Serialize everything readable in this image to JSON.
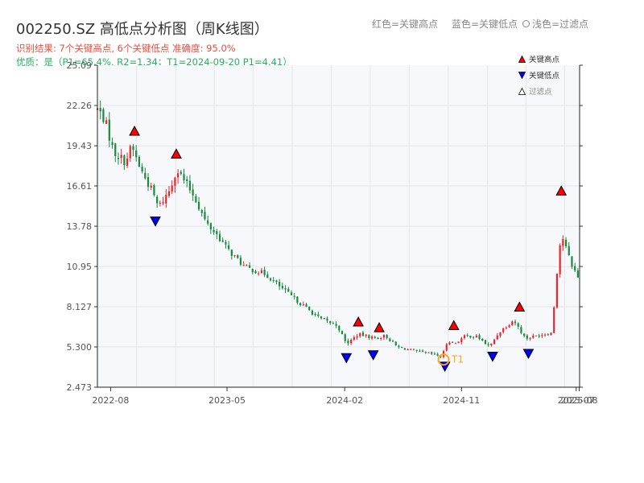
{
  "header": {
    "title": "002250.SZ 高低点分析图（周K线图）",
    "result_line": "识别结果: 7个关键高点, 6个关键低点   准确度: 95.0%",
    "quality_line": "优质：是（P1=65.4%, R2=1.34；T1=2024-09-20 P1=4.41）",
    "legend_red": "红色=关键高点",
    "legend_blue": "蓝色=关键低点",
    "legend_filtered": "浅色=过滤点"
  },
  "legend": {
    "high_label": "关键高点",
    "low_label": "关键低点",
    "filtered_label": "过滤点"
  },
  "colors": {
    "up": "#e8262b",
    "down": "#1a8a3c",
    "high_marker": "#ff0000",
    "low_marker": "#0000ff",
    "t1_ring": "#f5a623",
    "plot_bg": "#f6f8fb",
    "grid": "#e3e6ea"
  },
  "chart_data": {
    "type": "candlestick",
    "title": "002250.SZ 高低点分析图（周K线图）",
    "xlabel": "",
    "ylabel": "",
    "x_range": [
      "2022-07-01",
      "2025-08-05"
    ],
    "ylim": [
      2.473,
      25.09
    ],
    "y_ticks": [
      "2.473",
      "5.300",
      "8.127",
      "10.95",
      "13.78",
      "16.61",
      "19.43",
      "22.26",
      "25.09"
    ],
    "x_ticks": [
      {
        "date": "2022-08-01",
        "label": "2022-08"
      },
      {
        "date": "2023-05-01",
        "label": "2023-05"
      },
      {
        "date": "2024-02-01",
        "label": "2024-02"
      },
      {
        "date": "2024-11-01",
        "label": "2024-11"
      },
      {
        "date": "2025-07-28",
        "label": "2025-07"
      },
      {
        "date": "2025-08-04",
        "label": "2025-08"
      }
    ],
    "grid": true,
    "close_anchors": [
      [
        "2022-07-01",
        22.0
      ],
      [
        "2022-07-18",
        21.3
      ],
      [
        "2022-08-08",
        19.0
      ],
      [
        "2022-09-05",
        18.3
      ],
      [
        "2022-09-19",
        19.4
      ],
      [
        "2022-10-10",
        17.8
      ],
      [
        "2022-11-07",
        16.2
      ],
      [
        "2022-11-21",
        15.1
      ],
      [
        "2022-12-19",
        16.4
      ],
      [
        "2023-01-02",
        17.8
      ],
      [
        "2023-01-16",
        17.2
      ],
      [
        "2023-02-13",
        15.9
      ],
      [
        "2023-03-13",
        14.0
      ],
      [
        "2023-04-10",
        13.1
      ],
      [
        "2023-05-01",
        12.2
      ],
      [
        "2023-06-12",
        10.9
      ],
      [
        "2023-07-31",
        10.4
      ],
      [
        "2023-09-11",
        9.3
      ],
      [
        "2023-10-23",
        8.3
      ],
      [
        "2023-12-04",
        7.3
      ],
      [
        "2024-01-15",
        6.8
      ],
      [
        "2024-02-05",
        5.5
      ],
      [
        "2024-03-04",
        6.2
      ],
      [
        "2024-04-01",
        6.0
      ],
      [
        "2024-04-15",
        5.9
      ],
      [
        "2024-05-06",
        6.1
      ],
      [
        "2024-06-03",
        5.3
      ],
      [
        "2024-07-15",
        5.0
      ],
      [
        "2024-08-26",
        4.8
      ],
      [
        "2024-09-16",
        4.6
      ],
      [
        "2024-09-30",
        5.8
      ],
      [
        "2024-10-14",
        5.5
      ],
      [
        "2024-11-11",
        6.1
      ],
      [
        "2024-12-09",
        6.0
      ],
      [
        "2025-01-06",
        5.3
      ],
      [
        "2025-01-27",
        6.3
      ],
      [
        "2025-03-03",
        7.2
      ],
      [
        "2025-03-31",
        5.9
      ],
      [
        "2025-05-12",
        6.2
      ],
      [
        "2025-06-02",
        6.3
      ],
      [
        "2025-06-09",
        9.5
      ],
      [
        "2025-06-23",
        13.3
      ],
      [
        "2025-07-14",
        11.3
      ],
      [
        "2025-08-04",
        10.0
      ]
    ],
    "key_highs": [
      {
        "date": "2022-09-26",
        "value": 20.0
      },
      {
        "date": "2023-01-02",
        "value": 18.4
      },
      {
        "date": "2024-03-04",
        "value": 6.6
      },
      {
        "date": "2024-04-22",
        "value": 6.2
      },
      {
        "date": "2024-10-14",
        "value": 6.35
      },
      {
        "date": "2025-03-17",
        "value": 7.65
      },
      {
        "date": "2025-06-23",
        "value": 15.8
      }
    ],
    "key_lows": [
      {
        "date": "2022-11-14",
        "value": 14.6
      },
      {
        "date": "2024-02-05",
        "value": 5.0
      },
      {
        "date": "2024-04-08",
        "value": 5.2
      },
      {
        "date": "2024-09-23",
        "value": 4.4
      },
      {
        "date": "2025-01-13",
        "value": 5.1
      },
      {
        "date": "2025-04-07",
        "value": 5.3
      }
    ],
    "filtered_points": [],
    "t1": {
      "label": "T1",
      "date": "2024-09-20",
      "value": 4.41
    }
  }
}
